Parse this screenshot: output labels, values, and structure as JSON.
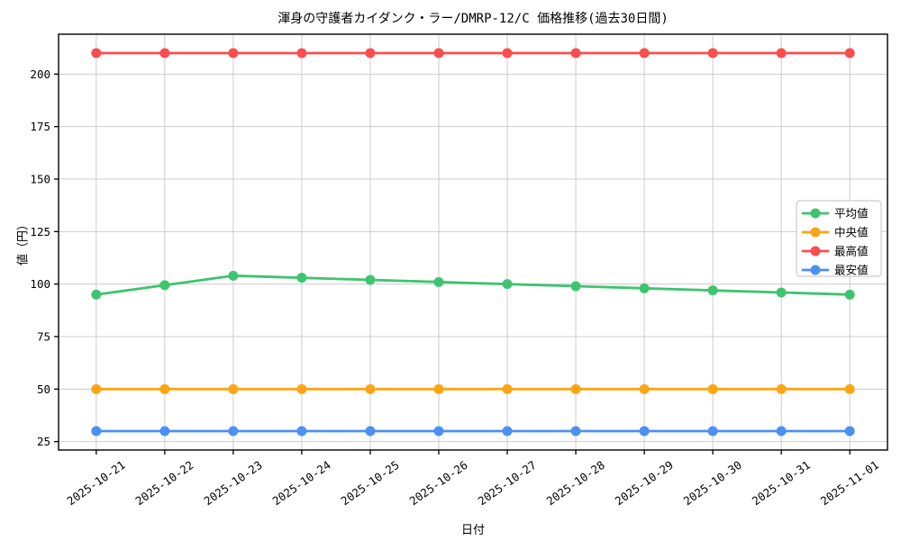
{
  "chart_data": {
    "type": "line",
    "title": "渾身の守護者カイダンク・ラー/DMRP-12/C 価格推移(過去30日間)",
    "xlabel": "日付",
    "ylabel": "値（円）",
    "categories": [
      "2025-10-21",
      "2025-10-22",
      "2025-10-23",
      "2025-10-24",
      "2025-10-25",
      "2025-10-26",
      "2025-10-27",
      "2025-10-28",
      "2025-10-29",
      "2025-10-30",
      "2025-10-31",
      "2025-11-01"
    ],
    "series": [
      {
        "name": "平均値",
        "color": "#3ec46f",
        "values": [
          95,
          99.5,
          104,
          103,
          102,
          101,
          100,
          99,
          98,
          97,
          96,
          95
        ]
      },
      {
        "name": "中央値",
        "color": "#ffa414",
        "values": [
          50,
          50,
          50,
          50,
          50,
          50,
          50,
          50,
          50,
          50,
          50,
          50
        ]
      },
      {
        "name": "最高値",
        "color": "#fb4d4d",
        "values": [
          210,
          210,
          210,
          210,
          210,
          210,
          210,
          210,
          210,
          210,
          210,
          210
        ]
      },
      {
        "name": "最安値",
        "color": "#4a90f5",
        "values": [
          30,
          30,
          30,
          30,
          30,
          30,
          30,
          30,
          30,
          30,
          30,
          30
        ]
      }
    ],
    "yticks": [
      25,
      50,
      75,
      100,
      125,
      150,
      175,
      200
    ],
    "ylim": [
      21,
      219
    ],
    "grid": true,
    "legend_position": "center right",
    "marker": "circle"
  },
  "style": {
    "grid_color": "#cccccc",
    "axis_color": "#000000",
    "tick_label_color": "#000000",
    "legend_border_color": "#cccccc",
    "legend_background": "#ffffff",
    "plot_background": "#ffffff"
  }
}
